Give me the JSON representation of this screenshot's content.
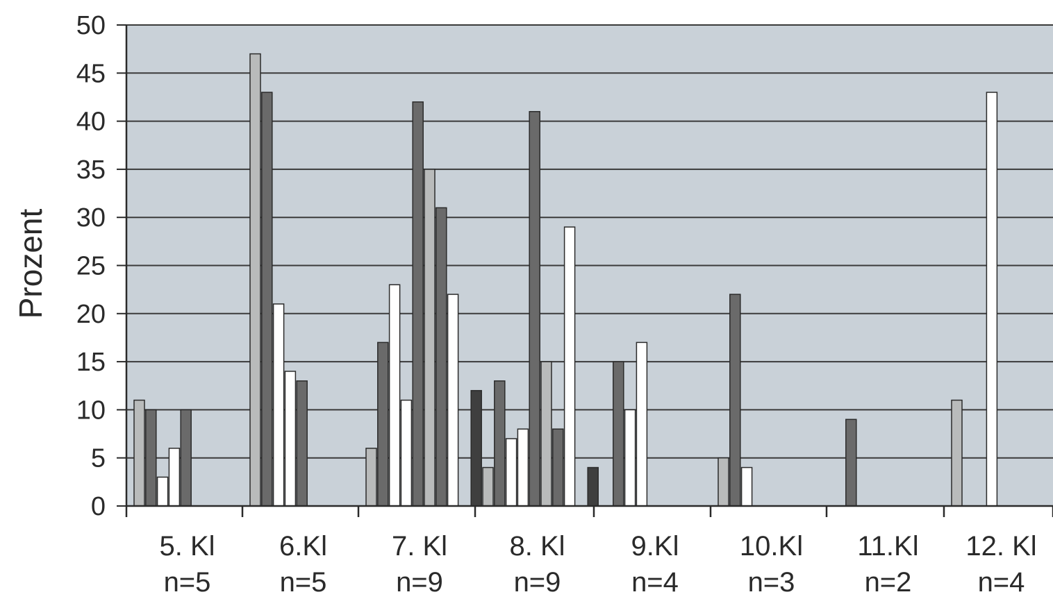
{
  "chart_data": {
    "type": "bar",
    "ylabel": "Prozent",
    "ylim": [
      0,
      50
    ],
    "yticks": [
      0,
      5,
      10,
      15,
      20,
      25,
      30,
      35,
      40,
      45,
      50
    ],
    "grid": true,
    "legend": "none",
    "categories": [
      {
        "name": "5. Kl",
        "n": "n=5"
      },
      {
        "name": "6.Kl",
        "n": "n=5"
      },
      {
        "name": "7. Kl",
        "n": "n=9"
      },
      {
        "name": "8. Kl",
        "n": "n=9"
      },
      {
        "name": "9.Kl",
        "n": "n=4"
      },
      {
        "name": "10.Kl",
        "n": "n=3"
      },
      {
        "name": "11.Kl",
        "n": "n=2"
      },
      {
        "name": "12. Kl",
        "n": "n=4"
      }
    ],
    "groups": [
      {
        "bars": [
          {
            "value": 11,
            "shade": "light"
          },
          {
            "value": 10,
            "shade": "dark"
          },
          {
            "value": 3,
            "shade": "white"
          },
          {
            "value": 6,
            "shade": "white"
          },
          {
            "value": 10,
            "shade": "dark"
          }
        ]
      },
      {
        "bars": [
          {
            "value": 47,
            "shade": "light"
          },
          {
            "value": 43,
            "shade": "dark"
          },
          {
            "value": 21,
            "shade": "white"
          },
          {
            "value": 14,
            "shade": "white"
          },
          {
            "value": 13,
            "shade": "dark"
          }
        ]
      },
      {
        "bars": [
          {
            "value": 6,
            "shade": "light"
          },
          {
            "value": 17,
            "shade": "dark"
          },
          {
            "value": 23,
            "shade": "white"
          },
          {
            "value": 11,
            "shade": "white"
          },
          {
            "value": 42,
            "shade": "dark"
          },
          {
            "value": 35,
            "shade": "light"
          },
          {
            "value": 31,
            "shade": "dark"
          },
          {
            "value": 22,
            "shade": "white"
          },
          {
            "value": 0,
            "shade": "white"
          },
          {
            "value": 12,
            "shade": "darkest"
          }
        ]
      },
      {
        "bars": [
          {
            "value": 4,
            "shade": "light"
          },
          {
            "value": 13,
            "shade": "dark"
          },
          {
            "value": 7,
            "shade": "white"
          },
          {
            "value": 8,
            "shade": "white"
          },
          {
            "value": 41,
            "shade": "dark"
          },
          {
            "value": 15,
            "shade": "light"
          },
          {
            "value": 8,
            "shade": "dark"
          },
          {
            "value": 29,
            "shade": "white"
          },
          {
            "value": 0,
            "shade": "white"
          },
          {
            "value": 4,
            "shade": "darkest"
          }
        ]
      },
      {
        "bars": [
          {
            "value": 0,
            "shade": "light"
          },
          {
            "value": 15,
            "shade": "dark"
          },
          {
            "value": 10,
            "shade": "white"
          },
          {
            "value": 17,
            "shade": "white"
          }
        ]
      },
      {
        "bars": [
          {
            "value": 5,
            "shade": "light"
          },
          {
            "value": 22,
            "shade": "dark"
          },
          {
            "value": 4,
            "shade": "white"
          },
          {
            "value": 0,
            "shade": "white"
          }
        ]
      },
      {
        "bars": [
          {
            "value": 0,
            "shade": "light"
          },
          {
            "value": 9,
            "shade": "dark"
          },
          {
            "value": 0,
            "shade": "white"
          },
          {
            "value": 0,
            "shade": "white"
          }
        ]
      },
      {
        "bars": [
          {
            "value": 11,
            "shade": "light"
          },
          {
            "value": 0,
            "shade": "dark"
          },
          {
            "value": 0,
            "shade": "white"
          },
          {
            "value": 43,
            "shade": "white"
          }
        ]
      }
    ],
    "colors": {
      "plot_background": "#c9d1d8",
      "gridline": "#3a3a3a",
      "axis": "#2a2a2a",
      "light": "#b9bbbb",
      "dark": "#6a6a6a",
      "darkest": "#3f3f3f",
      "white": "#ffffff",
      "bar_stroke": "#2b2b2b"
    }
  }
}
